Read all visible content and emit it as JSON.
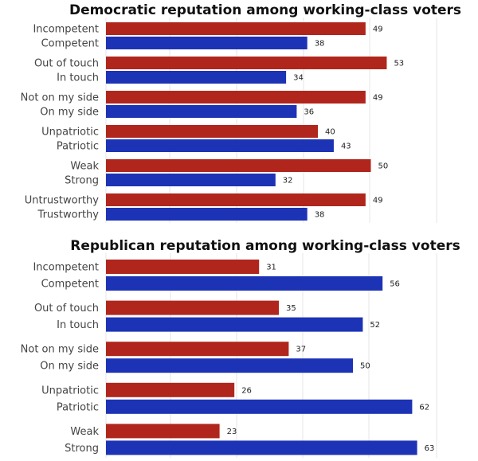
{
  "colors": {
    "negative": "#b0261c",
    "positive": "#1c33b5",
    "grid": "#e6e6e6"
  },
  "chart_data": [
    {
      "type": "bar",
      "orientation": "horizontal",
      "title": "Democratic reputation among working-class voters",
      "grid": true,
      "pairs": [
        {
          "neg_label": "Incompetent",
          "neg_value": 49,
          "pos_label": "Competent",
          "pos_value": 38
        },
        {
          "neg_label": "Out of touch",
          "neg_value": 53,
          "pos_label": "In touch",
          "pos_value": 34
        },
        {
          "neg_label": "Not on my side",
          "neg_value": 49,
          "pos_label": "On my side",
          "pos_value": 36
        },
        {
          "neg_label": "Unpatriotic",
          "neg_value": 40,
          "pos_label": "Patriotic",
          "pos_value": 43
        },
        {
          "neg_label": "Weak",
          "neg_value": 50,
          "pos_label": "Strong",
          "pos_value": 32
        },
        {
          "neg_label": "Untrustworthy",
          "neg_value": 49,
          "pos_label": "Trustworthy",
          "pos_value": 38
        }
      ]
    },
    {
      "type": "bar",
      "orientation": "horizontal",
      "title": "Republican reputation among working-class voters",
      "grid": true,
      "pairs": [
        {
          "neg_label": "Incompetent",
          "neg_value": 31,
          "pos_label": "Competent",
          "pos_value": 56
        },
        {
          "neg_label": "Out of touch",
          "neg_value": 35,
          "pos_label": "In touch",
          "pos_value": 52
        },
        {
          "neg_label": "Not on my side",
          "neg_value": 37,
          "pos_label": "On my side",
          "pos_value": 50
        },
        {
          "neg_label": "Unpatriotic",
          "neg_value": 26,
          "pos_label": "Patriotic",
          "pos_value": 62
        },
        {
          "neg_label": "Weak",
          "neg_value": 23,
          "pos_label": "Strong",
          "pos_value": 63
        }
      ]
    }
  ]
}
